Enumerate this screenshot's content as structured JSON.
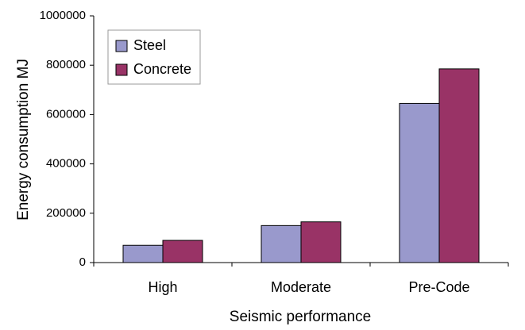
{
  "chart_data": {
    "type": "bar",
    "x_label": "Seismic performance",
    "y_label": "Energy consumption MJ",
    "categories": [
      "High",
      "Moderate",
      "Pre-Code"
    ],
    "series": [
      {
        "name": "Steel",
        "color": "#9999cc",
        "values": [
          70000,
          150000,
          645000
        ]
      },
      {
        "name": "Concrete",
        "color": "#993366",
        "values": [
          90000,
          165000,
          785000
        ]
      }
    ],
    "ylim": [
      0,
      1000000
    ],
    "yticks": [
      0,
      200000,
      400000,
      600000,
      800000,
      1000000
    ],
    "grid": false,
    "legend": "top-left"
  }
}
